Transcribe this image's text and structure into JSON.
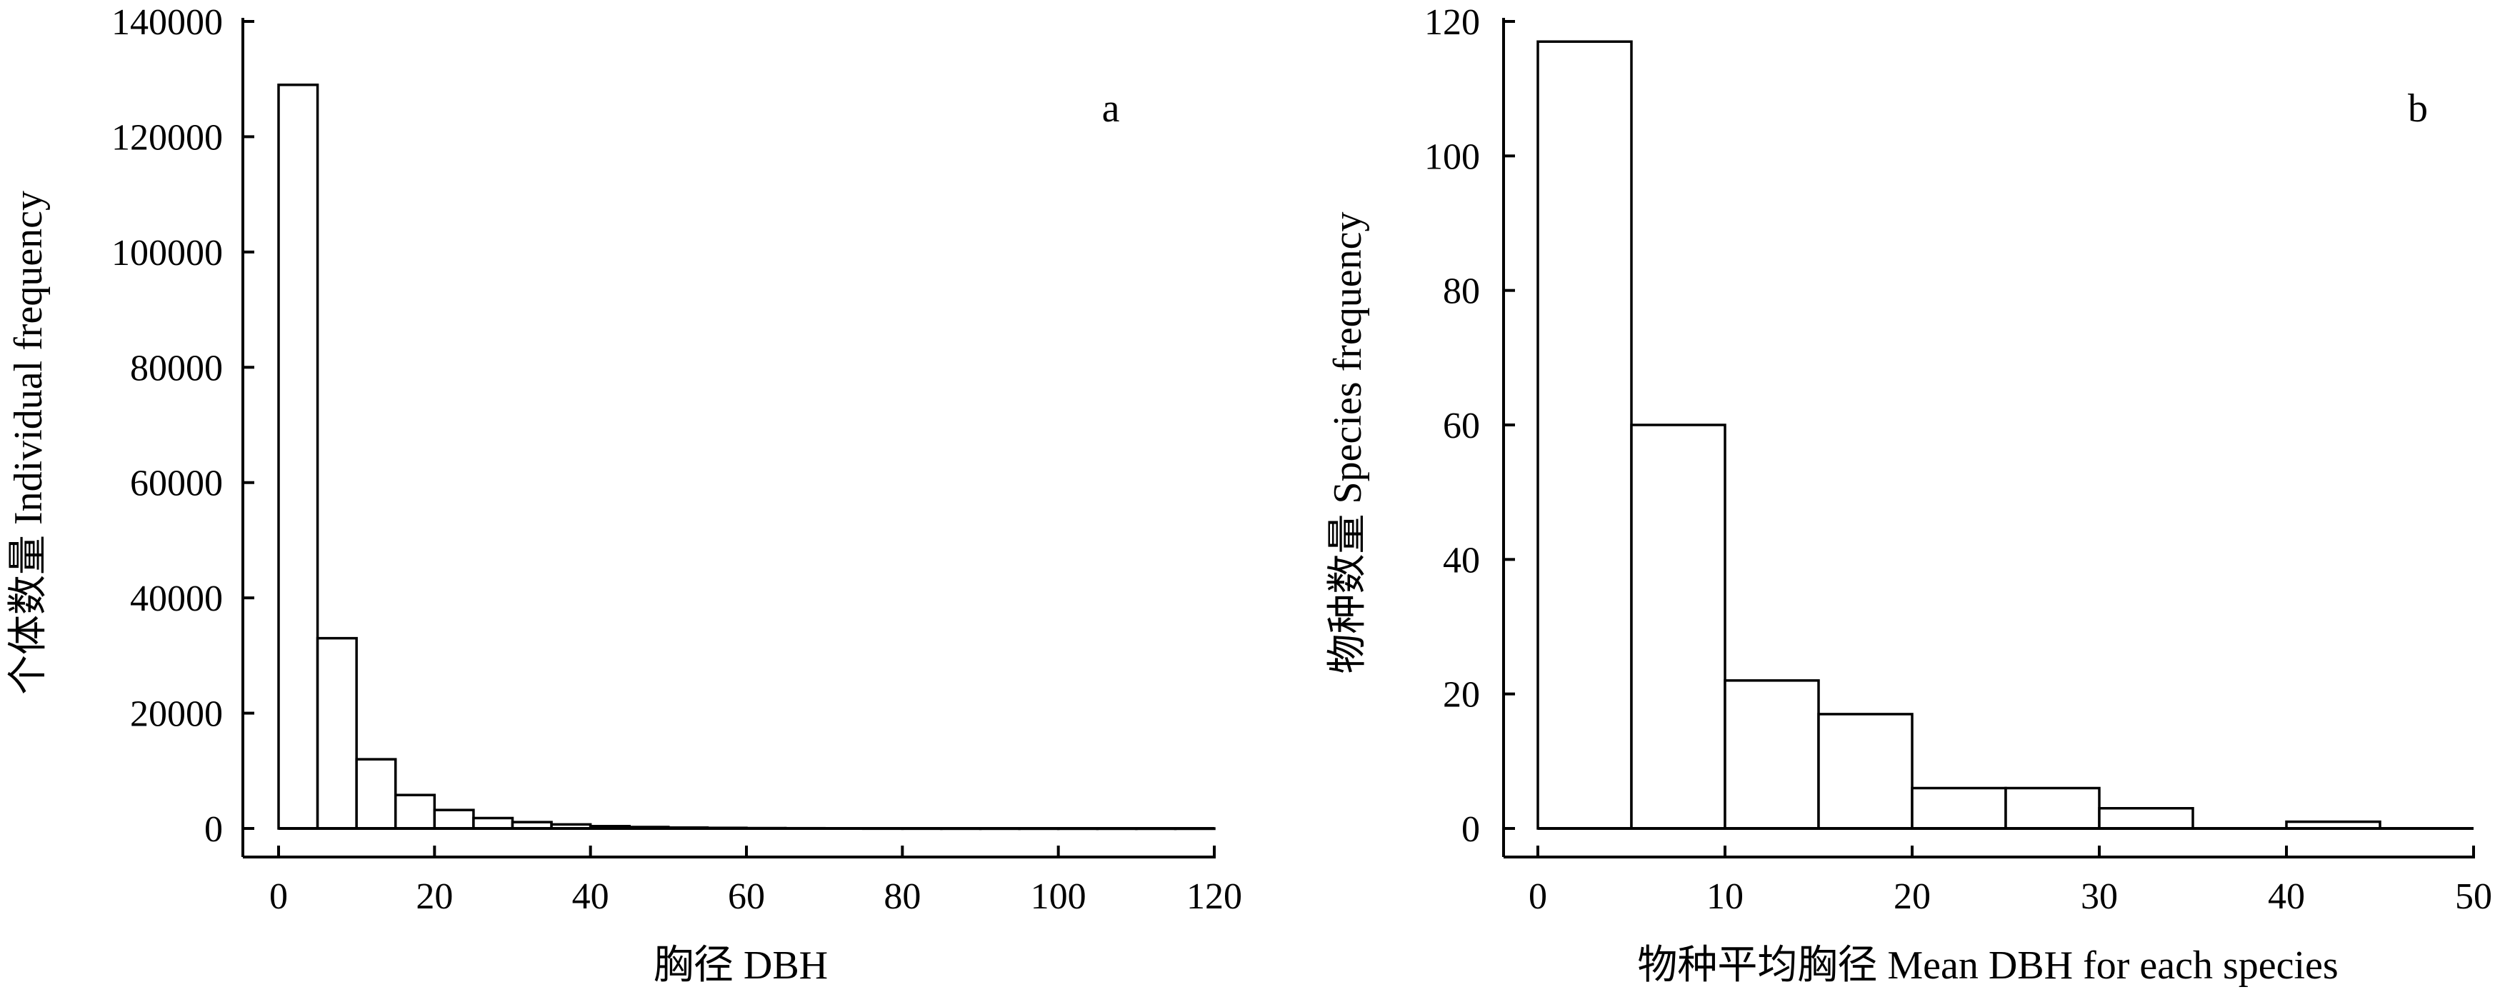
{
  "chart_data": [
    {
      "type": "bar",
      "panel_label": "a",
      "xlabel": "胸径 DBH",
      "ylabel": "个体数量 Individual frequency",
      "bin_width": 5,
      "bin_starts": [
        0,
        5,
        10,
        15,
        20,
        25,
        30,
        35,
        40,
        45,
        50,
        55,
        60,
        65,
        70,
        75,
        80,
        85,
        90,
        95,
        100,
        105,
        110,
        115
      ],
      "values": [
        129000,
        33000,
        12000,
        5800,
        3200,
        1800,
        1100,
        700,
        400,
        250,
        150,
        100,
        60,
        40,
        30,
        20,
        15,
        10,
        8,
        6,
        5,
        4,
        3,
        2
      ],
      "xlim": [
        0,
        120
      ],
      "ylim": [
        0,
        140000
      ],
      "xticks": [
        "0",
        "20",
        "40",
        "60",
        "80",
        "100",
        "120"
      ],
      "yticks": [
        "0",
        "20000",
        "40000",
        "60000",
        "80000",
        "100000",
        "120000",
        "140000"
      ]
    },
    {
      "type": "bar",
      "panel_label": "b",
      "xlabel": "物种平均胸径 Mean DBH for each species",
      "ylabel": "物种数量 Species frequency",
      "bin_width": 5,
      "bin_starts": [
        0,
        5,
        10,
        15,
        20,
        25,
        30,
        35,
        40
      ],
      "values": [
        117,
        60,
        22,
        17,
        6,
        6,
        3,
        0,
        1
      ],
      "xlim": [
        0,
        50
      ],
      "ylim": [
        0,
        120
      ],
      "xticks": [
        "0",
        "10",
        "20",
        "30",
        "40",
        "50"
      ],
      "yticks": [
        "0",
        "20",
        "40",
        "60",
        "80",
        "100",
        "120"
      ]
    }
  ]
}
